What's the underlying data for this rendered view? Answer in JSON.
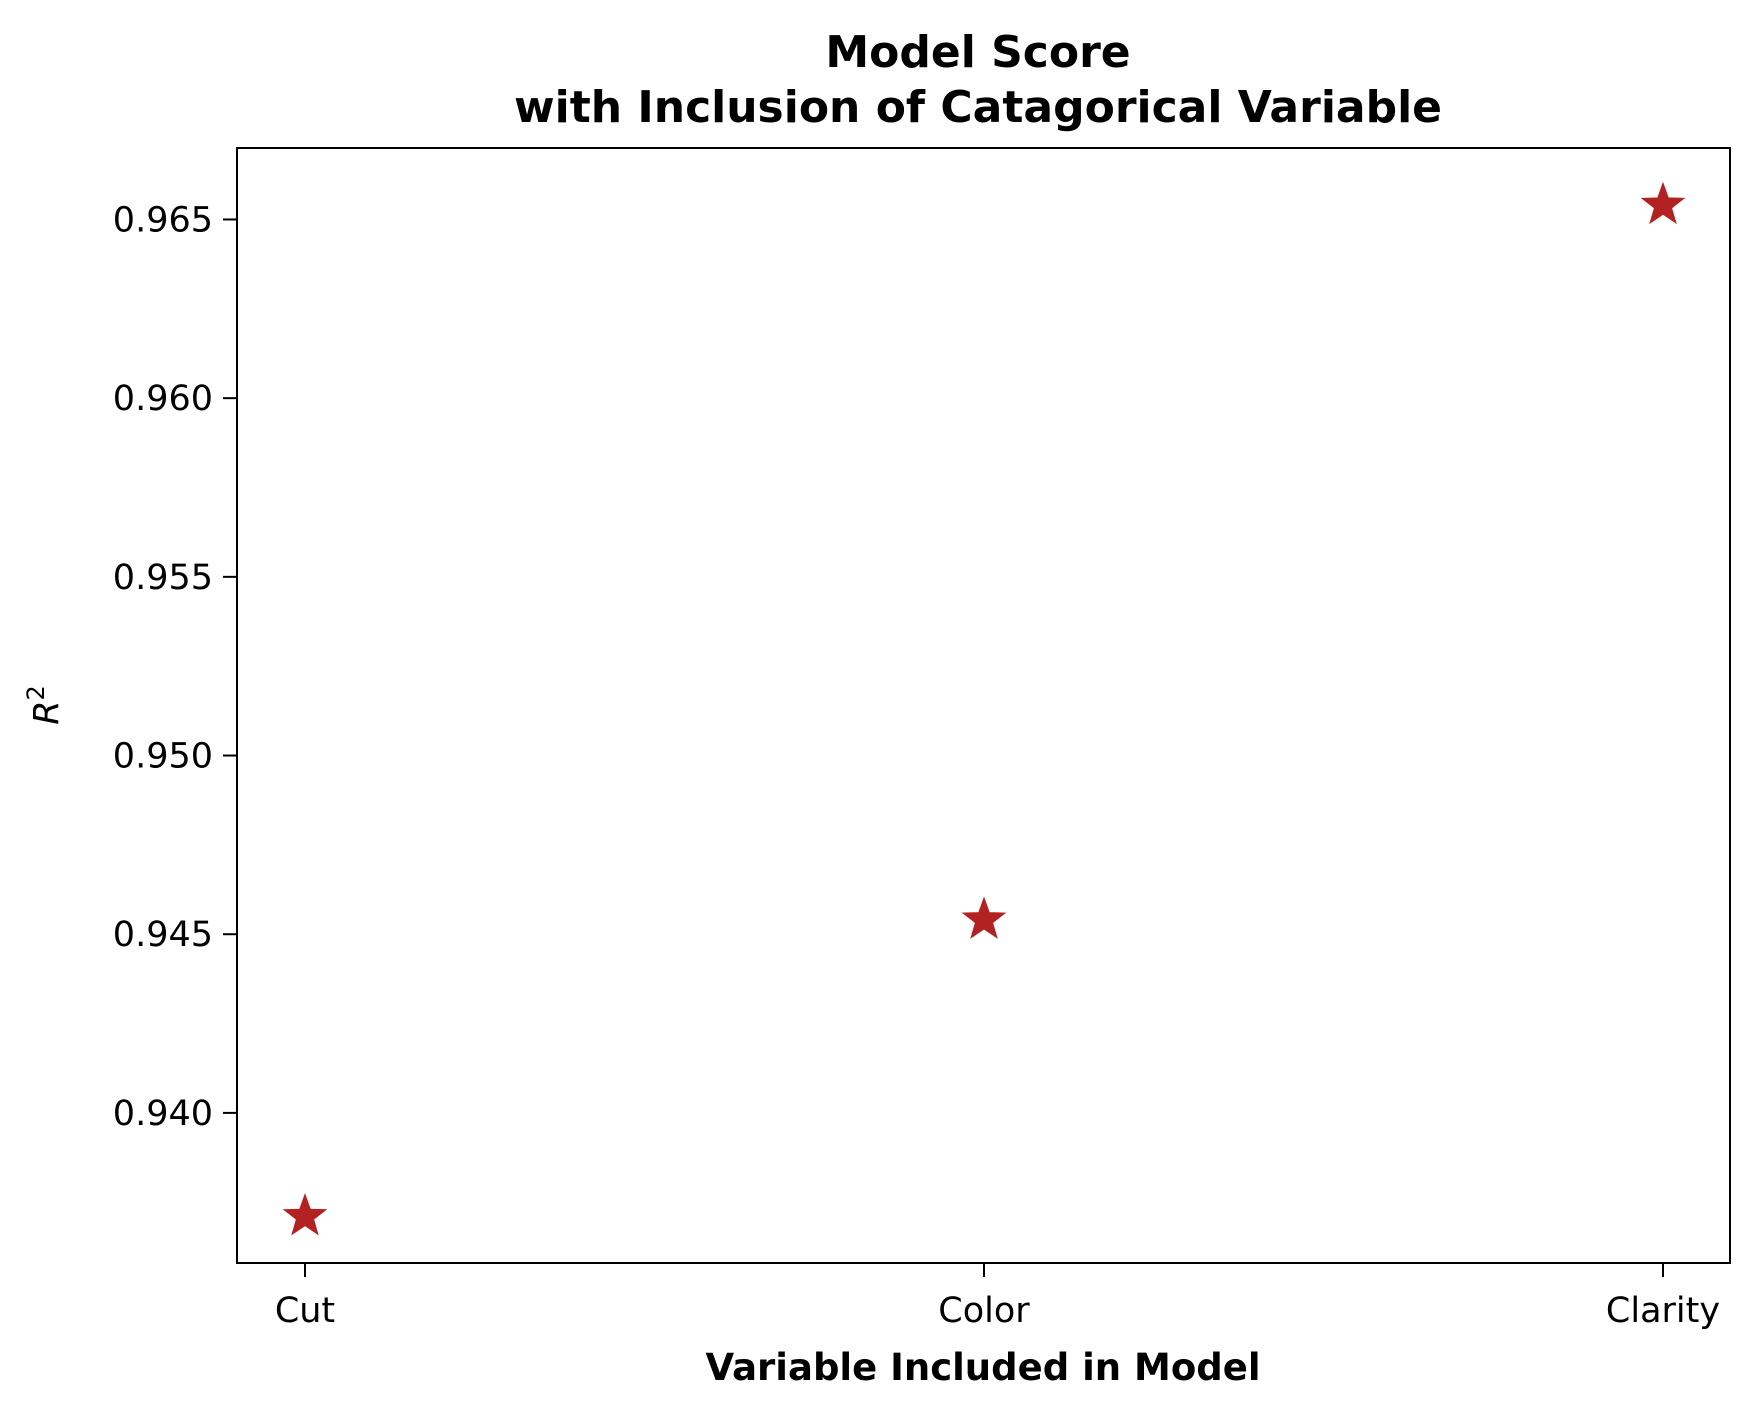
{
  "chart_data": {
    "type": "scatter",
    "title_line1": "Model Score",
    "title_line2": "with Inclusion of Catagorical Variable",
    "xlabel": "Variable Included in Model",
    "ylabel_base": "R",
    "ylabel_superscript": "2",
    "categories": [
      "Cut",
      "Color",
      "Clarity"
    ],
    "values": [
      0.9371,
      0.9454,
      0.9654
    ],
    "ylim": [
      0.9358,
      0.967
    ],
    "yticks": [
      0.94,
      0.945,
      0.95,
      0.955,
      0.96,
      0.965
    ],
    "ytick_labels": [
      "0.940",
      "0.945",
      "0.950",
      "0.955",
      "0.960",
      "0.965"
    ],
    "marker": "star",
    "marker_color": "#b22222",
    "grid": false,
    "legend": "none"
  }
}
